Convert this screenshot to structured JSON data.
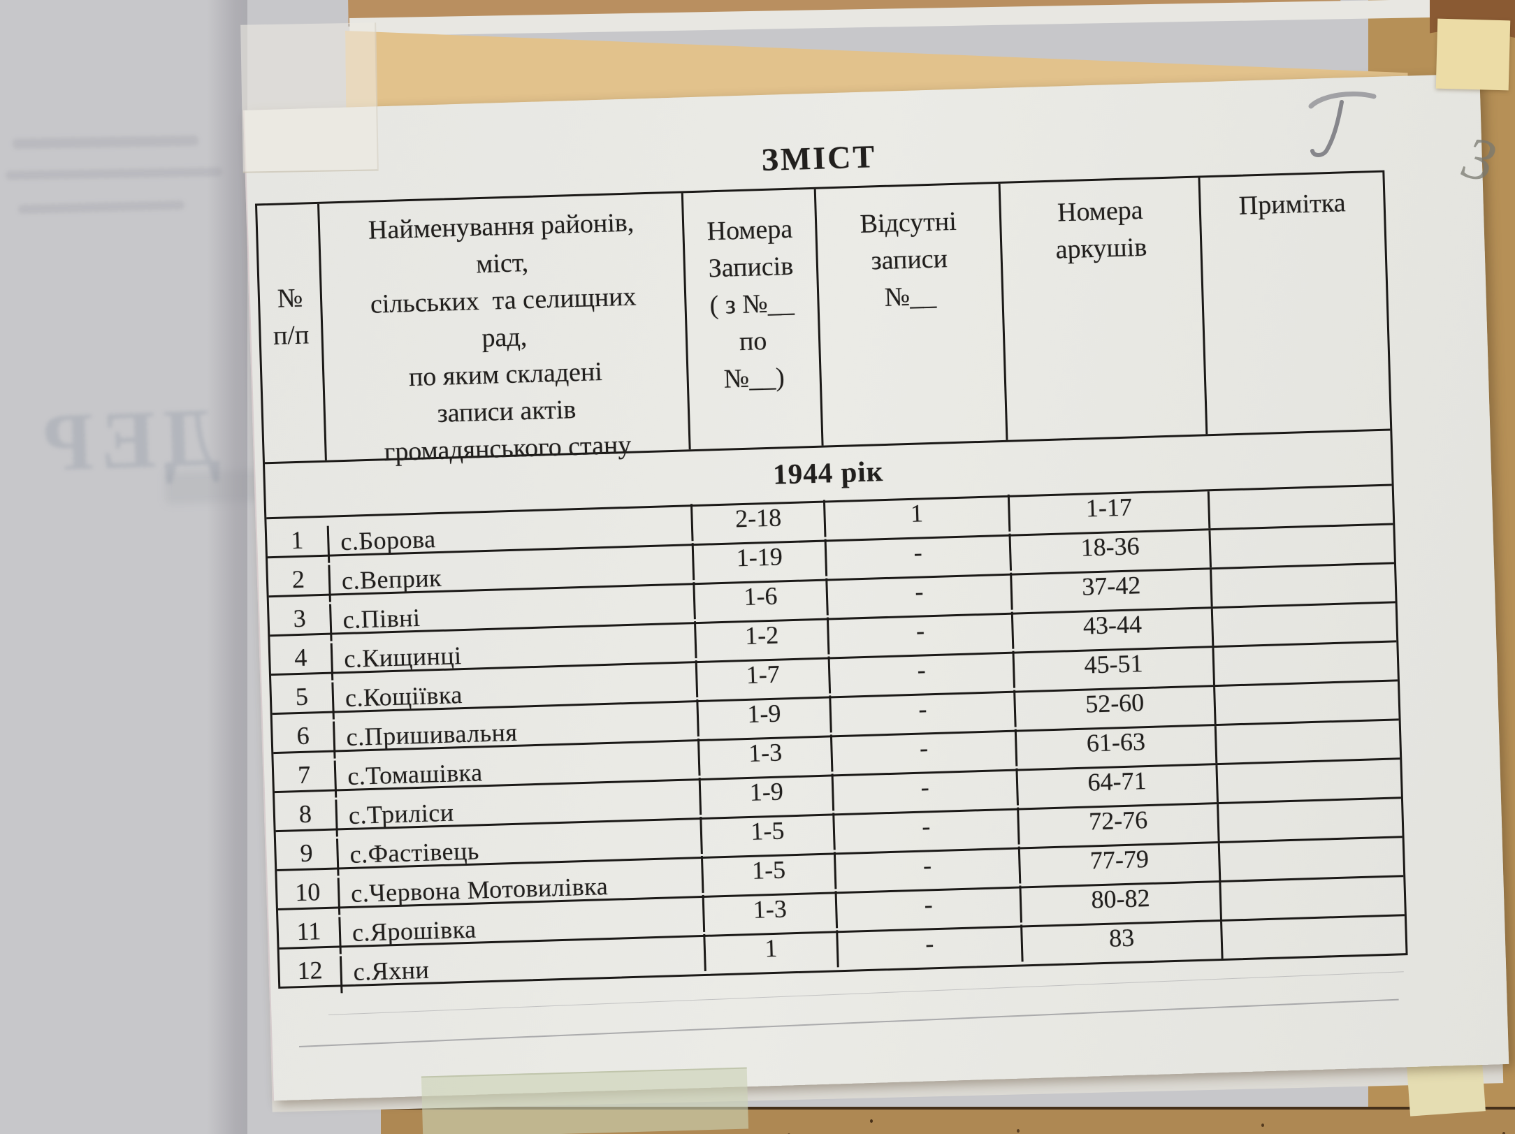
{
  "document": {
    "title": "ЗМІСТ",
    "year_section_label": "1944 рік",
    "table": {
      "headers": {
        "col_num": [
          "№",
          "п/п"
        ],
        "col_name": [
          "Найменування районів,",
          "міст,",
          "сільських  та селищних",
          "рад,",
          "по яким складені",
          "записи актів",
          "громадянського стану"
        ],
        "col_records": [
          "Номера",
          "Записів",
          "( з №__",
          "по",
          "№__)"
        ],
        "col_missing": [
          "Відсутні",
          "записи",
          "№__"
        ],
        "col_sheets": [
          "Номера",
          "аркушів"
        ],
        "col_note": "Примітка"
      },
      "rows": [
        {
          "num": "1",
          "name": "с.Борова",
          "records": "2-18",
          "missing": "1",
          "sheets": "1-17",
          "note": ""
        },
        {
          "num": "2",
          "name": "с.Веприк",
          "records": "1-19",
          "missing": "-",
          "sheets": "18-36",
          "note": ""
        },
        {
          "num": "3",
          "name": "с.Півні",
          "records": "1-6",
          "missing": "-",
          "sheets": "37-42",
          "note": ""
        },
        {
          "num": "4",
          "name": "с.Кищинці",
          "records": "1-2",
          "missing": "-",
          "sheets": "43-44",
          "note": ""
        },
        {
          "num": "5",
          "name": "с.Кощіївка",
          "records": "1-7",
          "missing": "-",
          "sheets": "45-51",
          "note": ""
        },
        {
          "num": "6",
          "name": "с.Пришивальня",
          "records": "1-9",
          "missing": "-",
          "sheets": "52-60",
          "note": ""
        },
        {
          "num": "7",
          "name": "с.Томашівка",
          "records": "1-3",
          "missing": "-",
          "sheets": "61-63",
          "note": ""
        },
        {
          "num": "8",
          "name": "с.Триліси",
          "records": "1-9",
          "missing": "-",
          "sheets": "64-71",
          "note": ""
        },
        {
          "num": "9",
          "name": "с.Фастівець",
          "records": "1-5",
          "missing": "-",
          "sheets": "72-76",
          "note": ""
        },
        {
          "num": "10",
          "name": "с.Червона Мотовилівка",
          "records": "1-5",
          "missing": "-",
          "sheets": "77-79",
          "note": ""
        },
        {
          "num": "11",
          "name": "с.Ярошівка",
          "records": "1-3",
          "missing": "-",
          "sheets": "80-82",
          "note": ""
        },
        {
          "num": "12",
          "name": "с.Яхни",
          "records": "1",
          "missing": "-",
          "sheets": "83",
          "note": ""
        }
      ]
    },
    "handwritten": {
      "page_mark_top": "I",
      "folder_mark_right": "3"
    },
    "colors": {
      "page": "#e8e8e4",
      "underlay_sheet": "#c7c7ca",
      "folder_cardboard": "#b69057",
      "folder_dark_corner": "#8a5a33",
      "tape_pale_yellow": "#ecdca6",
      "tape_pale_green": "#ccd2b4",
      "table_ink": "#1b1917",
      "pencil": "#78786e"
    }
  }
}
